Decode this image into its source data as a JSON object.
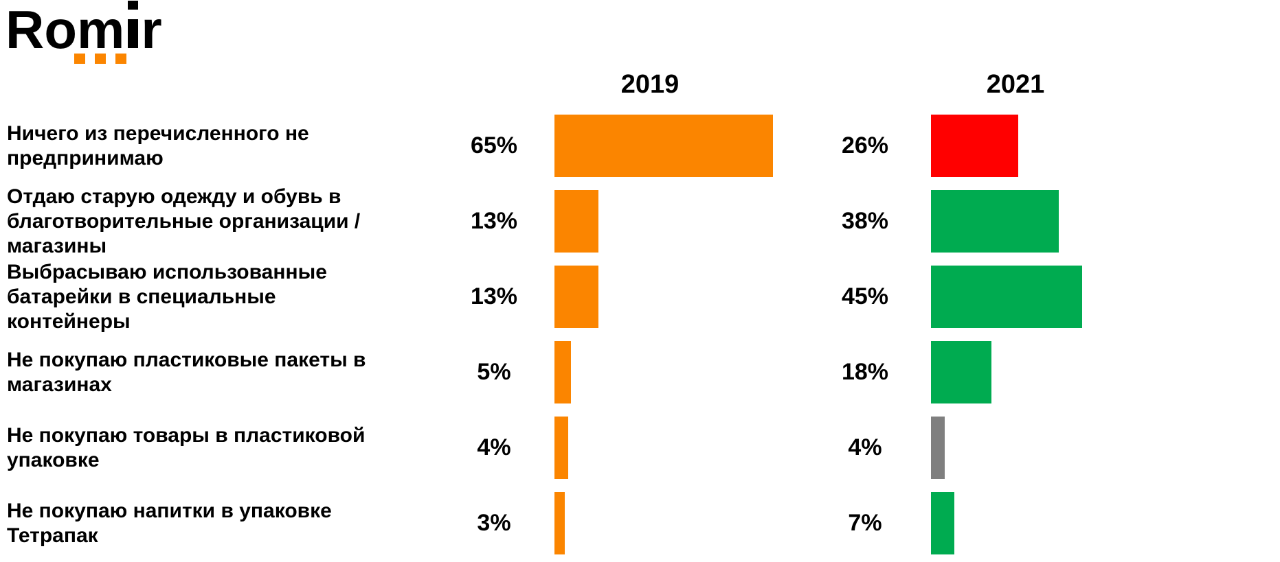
{
  "logo": {
    "text_before_i": "Rom",
    "text_after_i": "r",
    "accent_color": "#FB8500"
  },
  "chart_data": {
    "type": "bar",
    "orientation": "horizontal",
    "title": "",
    "categories": [
      "Ничего из перечисленного не\nпредпринимаю",
      "Отдаю старую одежду и обувь в\nблаготворительные организации /\nмагазины",
      "Выбрасываю использованные\nбатарейки в специальные\nконтейнеры",
      "Не покупаю пластиковые пакеты в\nмагазинах",
      "Не покупаю товары в пластиковой\nупаковке",
      "Не покупаю напитки в упаковке\nТетрапак"
    ],
    "series": [
      {
        "name": "2019",
        "values": [
          65,
          13,
          13,
          5,
          4,
          3
        ],
        "bar_colors": [
          "#FB8500",
          "#FB8500",
          "#FB8500",
          "#FB8500",
          "#FB8500",
          "#FB8500"
        ]
      },
      {
        "name": "2021",
        "values": [
          26,
          38,
          45,
          18,
          4,
          7
        ],
        "bar_colors": [
          "#FF0000",
          "#00AB50",
          "#00AB50",
          "#00AB50",
          "#7F7F7F",
          "#00AB50"
        ]
      }
    ],
    "value_suffix": "%",
    "xlim": [
      0,
      65
    ],
    "grid": false,
    "value_label_position": "left-of-bar",
    "colors": {
      "orange_2019": "#FB8500",
      "red_negative": "#FF0000",
      "green_positive": "#00AB50",
      "gray_neutral": "#7F7F7F"
    }
  }
}
